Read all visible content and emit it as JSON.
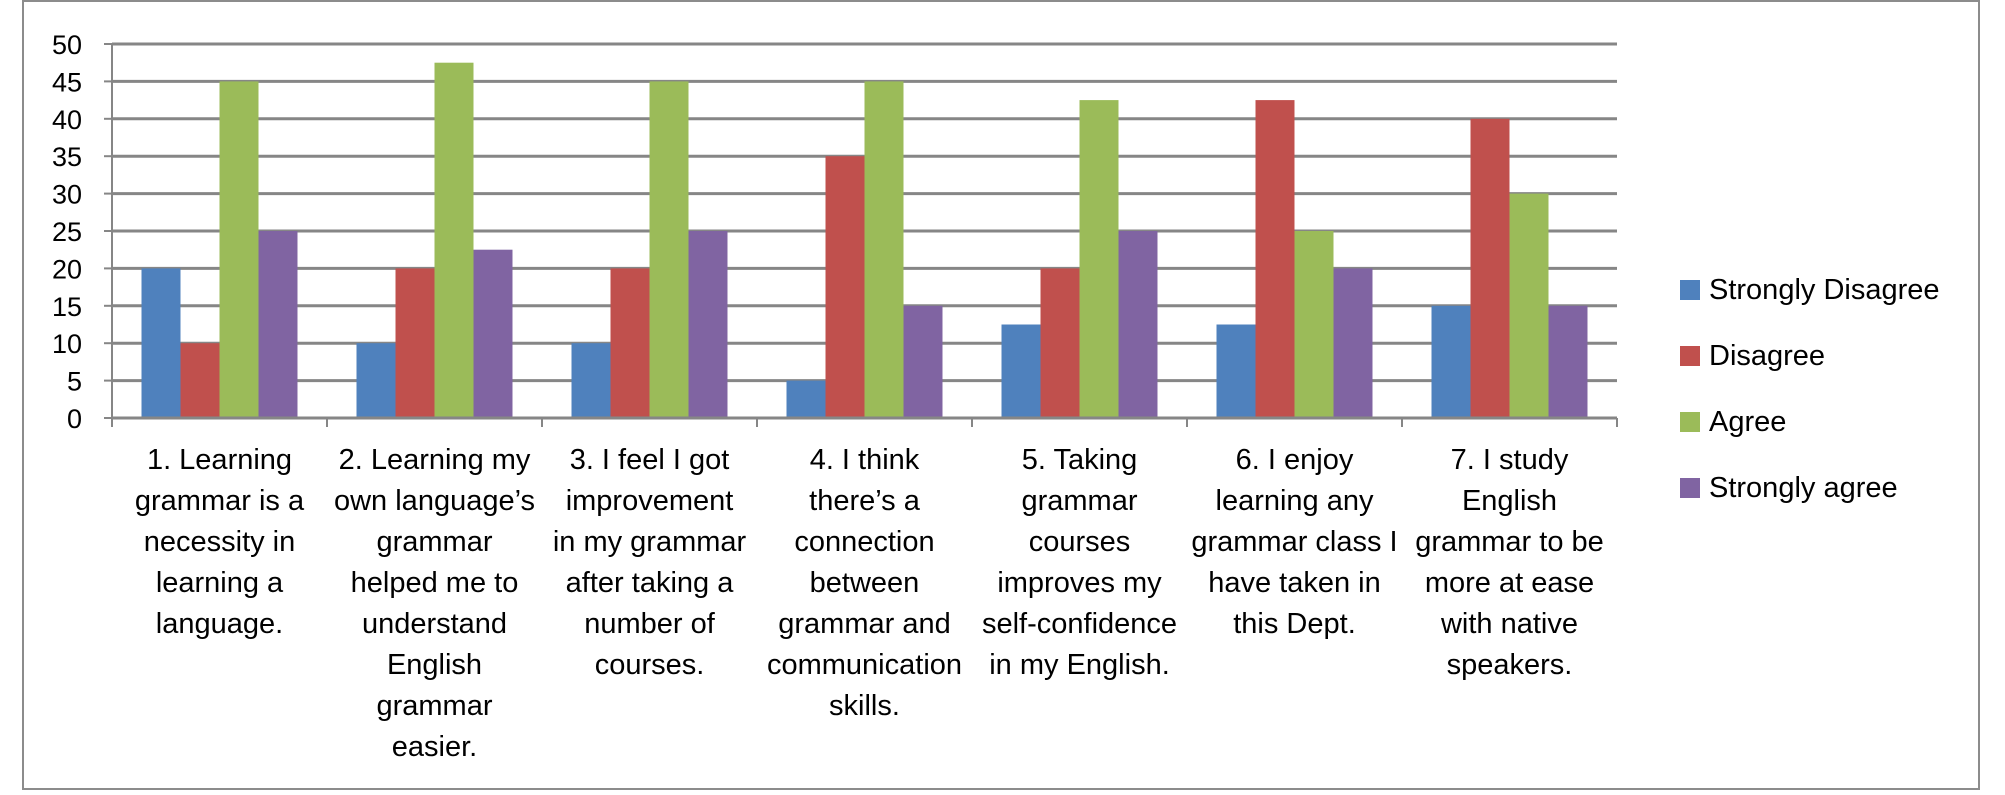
{
  "chart_data": {
    "type": "bar",
    "categories": [
      "1. Learning grammar is a necessity in learning a language.",
      "2. Learning my own language’s grammar helped me to understand English grammar easier.",
      "3. I feel I got improvement in my grammar after taking a number of courses.",
      "4. I think there’s a connection between grammar and communication skills.",
      "5. Taking grammar courses improves my self-confidence in my English.",
      "6. I enjoy learning any grammar class I have taken in this Dept.",
      "7. I study English grammar to be more at ease with native speakers."
    ],
    "category_lines": [
      [
        "1. Learning",
        "grammar is a",
        "necessity in",
        "learning a",
        "language."
      ],
      [
        "2. Learning my",
        "own language’s",
        "grammar",
        "helped me to",
        "understand",
        "English",
        "grammar",
        "easier."
      ],
      [
        "3. I feel I got",
        "improvement",
        "in my grammar",
        "after taking a",
        "number of",
        "courses."
      ],
      [
        "4. I think",
        "there’s a",
        "connection",
        "between",
        "grammar and",
        "communication",
        "skills."
      ],
      [
        "5. Taking",
        "grammar",
        "courses",
        "improves my",
        "self-confidence",
        "in my English."
      ],
      [
        "6. I enjoy",
        "learning any",
        "grammar class I",
        "have taken in",
        "this Dept."
      ],
      [
        "7. I study",
        "English",
        "grammar to be",
        "more at ease",
        "with native",
        "speakers."
      ]
    ],
    "series": [
      {
        "name": "Strongly Disagree",
        "color": "#4f81bd",
        "values": [
          20,
          10,
          10,
          5,
          12.5,
          12.5,
          15
        ]
      },
      {
        "name": "Disagree",
        "color": "#c0504d",
        "values": [
          10,
          20,
          20,
          35,
          20,
          42.5,
          40
        ]
      },
      {
        "name": "Agree",
        "color": "#9bbb59",
        "values": [
          45,
          47.5,
          45,
          45,
          42.5,
          25,
          30
        ]
      },
      {
        "name": "Strongly agree",
        "color": "#8064a2",
        "values": [
          25,
          22.5,
          25,
          15,
          25,
          20,
          15
        ]
      }
    ],
    "ylim": [
      0,
      50
    ],
    "yticks": [
      0,
      5,
      10,
      15,
      20,
      25,
      30,
      35,
      40,
      45,
      50
    ],
    "grid": true,
    "legend_position": "right"
  }
}
